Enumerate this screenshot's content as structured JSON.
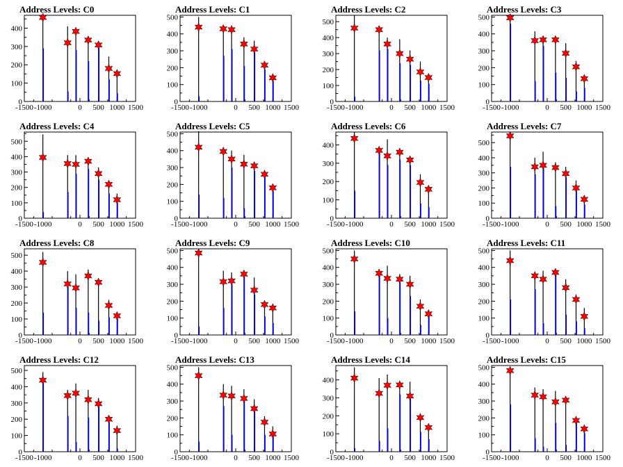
{
  "figure": {
    "layout": {
      "rows": 4,
      "cols": 4
    },
    "colors": {
      "spike_black": "#000000",
      "spike_blue": "#0000ff",
      "star_fill": "#ff0000",
      "star_stroke": "#000000",
      "frame": "#000000"
    }
  },
  "chart_data": [
    {
      "type": "bar",
      "title": "Address Levels: C0",
      "xlim": [
        -1500,
        1500
      ],
      "ylim": [
        0,
        470
      ],
      "xticks": [
        -1500,
        -1000,
        0,
        500,
        1000,
        1500
      ],
      "xtick_labels": [
        "-1500",
        "-1000",
        "0",
        "500",
        "1000",
        "1500"
      ],
      "yticks": [
        0,
        100,
        200,
        300,
        400
      ],
      "spikes": {
        "x": [
          -1000,
          -333,
          -111,
          222,
          500,
          778,
          1000
        ],
        "black": [
          460,
          410,
          390,
          345,
          320,
          245,
          165
        ],
        "blue": [
          290,
          55,
          280,
          220,
          300,
          120,
          45
        ]
      },
      "markers": {
        "x": [
          -1000,
          -333,
          -111,
          222,
          500,
          778,
          1000
        ],
        "y": [
          458,
          320,
          382,
          335,
          308,
          180,
          152
        ]
      }
    },
    {
      "type": "bar",
      "title": "Address Levels: C1",
      "xlim": [
        -1500,
        1500
      ],
      "ylim": [
        0,
        510
      ],
      "xticks": [
        -1500,
        -1000,
        0,
        500,
        1000,
        1500
      ],
      "xtick_labels": [
        "-1500",
        "-1000",
        "0",
        "500",
        "1000",
        "1500"
      ],
      "yticks": [
        0,
        100,
        200,
        300,
        400,
        500
      ],
      "spikes": {
        "x": [
          -1000,
          -333,
          -111,
          222,
          500,
          778,
          1000
        ],
        "black": [
          500,
          440,
          430,
          380,
          360,
          230,
          155
        ],
        "blue": [
          30,
          270,
          310,
          210,
          290,
          190,
          120
        ]
      },
      "markers": {
        "x": [
          -1000,
          -333,
          -111,
          222,
          500,
          778,
          1000
        ],
        "y": [
          440,
          430,
          425,
          340,
          310,
          215,
          140
        ]
      }
    },
    {
      "type": "bar",
      "title": "Address Levels: C2",
      "xlim": [
        -1500,
        1500
      ],
      "ylim": [
        0,
        540
      ],
      "xticks": [
        -1500,
        -1000,
        0,
        500,
        1000,
        1500
      ],
      "xtick_labels": [
        "-1500",
        "-1000",
        "0",
        "500",
        "1000",
        "1500"
      ],
      "yticks": [
        0,
        100,
        200,
        300,
        400,
        500
      ],
      "spikes": {
        "x": [
          -1000,
          -333,
          -111,
          222,
          500,
          778,
          1000
        ],
        "black": [
          540,
          470,
          400,
          390,
          320,
          250,
          155
        ],
        "blue": [
          30,
          320,
          330,
          240,
          230,
          130,
          110
        ]
      },
      "markers": {
        "x": [
          -1000,
          -333,
          -111,
          222,
          500,
          778,
          1000
        ],
        "y": [
          460,
          450,
          360,
          300,
          265,
          185,
          150
        ]
      }
    },
    {
      "type": "bar",
      "title": "Address Levels: C3",
      "xlim": [
        -1500,
        1500
      ],
      "ylim": [
        0,
        510
      ],
      "xticks": [
        -1500,
        -1000,
        0,
        500,
        1000,
        1500
      ],
      "xtick_labels": [
        "-1500",
        "-1000",
        "0",
        "500",
        "1000",
        "1500"
      ],
      "yticks": [
        0,
        100,
        200,
        300,
        400,
        500
      ],
      "spikes": {
        "x": [
          -1000,
          -333,
          -111,
          222,
          500,
          778,
          1000
        ],
        "black": [
          500,
          415,
          380,
          370,
          345,
          240,
          150
        ],
        "blue": [
          460,
          120,
          330,
          170,
          140,
          60,
          80
        ]
      },
      "markers": {
        "x": [
          -1000,
          -333,
          -111,
          222,
          500,
          778,
          1000
        ],
        "y": [
          495,
          360,
          365,
          365,
          285,
          205,
          135
        ]
      }
    },
    {
      "type": "bar",
      "title": "Address Levels: C4",
      "xlim": [
        -1500,
        1500
      ],
      "ylim": [
        0,
        560
      ],
      "xticks": [
        -1500,
        -1000,
        0,
        500,
        1000,
        1500
      ],
      "xtick_labels": [
        "-1500",
        "-1000",
        "0",
        "500",
        "1000",
        "1500"
      ],
      "yticks": [
        0,
        100,
        200,
        300,
        400,
        500
      ],
      "spikes": {
        "x": [
          -1000,
          -333,
          -111,
          222,
          500,
          778,
          1000
        ],
        "black": [
          545,
          410,
          410,
          380,
          330,
          230,
          160
        ],
        "blue": [
          40,
          170,
          290,
          320,
          250,
          160,
          100
        ]
      },
      "markers": {
        "x": [
          -1000,
          -333,
          -111,
          222,
          500,
          778,
          1000
        ],
        "y": [
          395,
          355,
          350,
          370,
          290,
          220,
          120
        ]
      }
    },
    {
      "type": "bar",
      "title": "Address Levels: C5",
      "xlim": [
        -1500,
        1500
      ],
      "ylim": [
        0,
        510
      ],
      "xticks": [
        -1500,
        -1000,
        0,
        500,
        1000,
        1500
      ],
      "xtick_labels": [
        "-1500",
        "-1000",
        "0",
        "500",
        "1000",
        "1500"
      ],
      "yticks": [
        0,
        100,
        200,
        300,
        400,
        500
      ],
      "spikes": {
        "x": [
          -1000,
          -333,
          -111,
          222,
          500,
          778,
          1000
        ],
        "black": [
          515,
          420,
          400,
          375,
          330,
          270,
          190
        ],
        "blue": [
          140,
          120,
          300,
          60,
          280,
          250,
          160
        ]
      },
      "markers": {
        "x": [
          -1000,
          -333,
          -111,
          222,
          500,
          778,
          1000
        ],
        "y": [
          420,
          395,
          350,
          320,
          310,
          260,
          180
        ]
      }
    },
    {
      "type": "bar",
      "title": "Address Levels: C6",
      "xlim": [
        -1500,
        1500
      ],
      "ylim": [
        0,
        470
      ],
      "xticks": [
        -1500,
        -1000,
        0,
        500,
        1000,
        1500
      ],
      "xtick_labels": [
        "-1500",
        "-1000",
        "0",
        "500",
        "1000",
        "1500"
      ],
      "yticks": [
        0,
        100,
        200,
        300,
        400
      ],
      "spikes": {
        "x": [
          -1000,
          -333,
          -111,
          222,
          500,
          778,
          1000
        ],
        "black": [
          470,
          390,
          430,
          380,
          330,
          240,
          170
        ],
        "blue": [
          150,
          360,
          290,
          320,
          290,
          80,
          60
        ]
      },
      "markers": {
        "x": [
          -1000,
          -333,
          -111,
          222,
          500,
          778,
          1000
        ],
        "y": [
          435,
          370,
          340,
          360,
          318,
          195,
          158
        ]
      }
    },
    {
      "type": "bar",
      "title": "Address Levels: C7",
      "xlim": [
        -1500,
        1500
      ],
      "ylim": [
        0,
        570
      ],
      "xticks": [
        -1500,
        -1000,
        0,
        500,
        1000,
        1500
      ],
      "xtick_labels": [
        "-1500",
        "-1000",
        "0",
        "500",
        "1000",
        "1500"
      ],
      "yticks": [
        0,
        100,
        200,
        300,
        400,
        500
      ],
      "spikes": {
        "x": [
          -1000,
          -333,
          -111,
          222,
          500,
          778,
          1000
        ],
        "black": [
          560,
          400,
          440,
          370,
          340,
          250,
          150
        ],
        "blue": [
          340,
          290,
          330,
          80,
          270,
          180,
          90
        ]
      },
      "markers": {
        "x": [
          -1000,
          -333,
          -111,
          222,
          500,
          778,
          1000
        ],
        "y": [
          545,
          340,
          350,
          335,
          295,
          200,
          125
        ]
      }
    },
    {
      "type": "bar",
      "title": "Address Levels: C8",
      "xlim": [
        -1500,
        1500
      ],
      "ylim": [
        0,
        540
      ],
      "xticks": [
        -1500,
        -1000,
        0,
        500,
        1000,
        1500
      ],
      "xtick_labels": [
        "-1500",
        "-1000",
        "0",
        "500",
        "1000",
        "1500"
      ],
      "yticks": [
        0,
        100,
        200,
        300,
        400,
        500
      ],
      "spikes": {
        "x": [
          -1000,
          -333,
          -111,
          222,
          500,
          778,
          1000
        ],
        "black": [
          520,
          400,
          380,
          410,
          330,
          220,
          140
        ],
        "blue": [
          140,
          300,
          170,
          140,
          90,
          110,
          110
        ]
      },
      "markers": {
        "x": [
          -1000,
          -333,
          -111,
          222,
          500,
          778,
          1000
        ],
        "y": [
          455,
          320,
          295,
          370,
          330,
          185,
          120
        ]
      }
    },
    {
      "type": "bar",
      "title": "Address Levels: C9",
      "xlim": [
        -1500,
        1500
      ],
      "ylim": [
        0,
        510
      ],
      "xticks": [
        -1500,
        -1000,
        0,
        500,
        1000,
        1500
      ],
      "xtick_labels": [
        "-1500",
        "-1000",
        "0",
        "500",
        "1000",
        "1500"
      ],
      "yticks": [
        0,
        100,
        200,
        300,
        400,
        500
      ],
      "spikes": {
        "x": [
          -1000,
          -333,
          -111,
          222,
          500,
          778,
          1000
        ],
        "black": [
          500,
          380,
          370,
          380,
          340,
          200,
          170
        ],
        "blue": [
          50,
          160,
          300,
          345,
          240,
          110,
          70
        ]
      },
      "markers": {
        "x": [
          -1000,
          -333,
          -111,
          222,
          500,
          778,
          1000
        ],
        "y": [
          485,
          315,
          320,
          360,
          265,
          180,
          160
        ]
      }
    },
    {
      "type": "bar",
      "title": "Address Levels: C10",
      "xlim": [
        -1500,
        1500
      ],
      "ylim": [
        0,
        510
      ],
      "xticks": [
        -1500,
        -1000,
        0,
        500,
        1000,
        1500
      ],
      "xtick_labels": [
        "-1500",
        "-1000",
        "0",
        "500",
        "1000",
        "1500"
      ],
      "yticks": [
        0,
        100,
        200,
        300,
        400,
        500
      ],
      "spikes": {
        "x": [
          -1000,
          -333,
          -111,
          222,
          500,
          778,
          1000
        ],
        "black": [
          500,
          390,
          410,
          360,
          350,
          210,
          140
        ],
        "blue": [
          140,
          360,
          100,
          310,
          230,
          60,
          120
        ]
      },
      "markers": {
        "x": [
          -1000,
          -333,
          -111,
          222,
          500,
          778,
          1000
        ],
        "y": [
          450,
          365,
          335,
          330,
          300,
          170,
          125
        ]
      }
    },
    {
      "type": "bar",
      "title": "Address Levels: C11",
      "xlim": [
        -1500,
        1500
      ],
      "ylim": [
        0,
        510
      ],
      "xticks": [
        -1500,
        -1000,
        0,
        500,
        1000,
        1500
      ],
      "xtick_labels": [
        "-1500",
        "-1000",
        "0",
        "500",
        "1000",
        "1500"
      ],
      "yticks": [
        0,
        100,
        200,
        300,
        400,
        500
      ],
      "spikes": {
        "x": [
          -1000,
          -333,
          -111,
          222,
          500,
          778,
          1000
        ],
        "black": [
          500,
          370,
          380,
          370,
          330,
          240,
          160
        ],
        "blue": [
          210,
          270,
          70,
          360,
          120,
          80,
          40
        ]
      },
      "markers": {
        "x": [
          -1000,
          -333,
          -111,
          222,
          500,
          778,
          1000
        ],
        "y": [
          440,
          350,
          330,
          370,
          280,
          210,
          110
        ]
      }
    },
    {
      "type": "bar",
      "title": "Address Levels: C12",
      "xlim": [
        -1500,
        1500
      ],
      "ylim": [
        0,
        530
      ],
      "xticks": [
        -1500,
        -1000,
        0,
        500,
        1000,
        1500
      ],
      "xtick_labels": [
        "-1500",
        "-1000",
        "0",
        "500",
        "1000",
        "1500"
      ],
      "yticks": [
        0,
        100,
        200,
        300,
        400,
        500
      ],
      "spikes": {
        "x": [
          -1000,
          -333,
          -111,
          222,
          500,
          778,
          1000
        ],
        "black": [
          490,
          380,
          420,
          380,
          330,
          220,
          160
        ],
        "blue": [
          440,
          220,
          60,
          210,
          290,
          180,
          20
        ]
      },
      "markers": {
        "x": [
          -1000,
          -333,
          -111,
          222,
          500,
          778,
          1000
        ],
        "y": [
          440,
          345,
          360,
          320,
          295,
          200,
          130
        ]
      }
    },
    {
      "type": "bar",
      "title": "Address Levels: C13",
      "xlim": [
        -1500,
        1500
      ],
      "ylim": [
        0,
        510
      ],
      "xticks": [
        -1500,
        -1000,
        0,
        500,
        1000,
        1500
      ],
      "xtick_labels": [
        "-1500",
        "-1000",
        "0",
        "500",
        "1000",
        "1500"
      ],
      "yticks": [
        0,
        100,
        200,
        300,
        400,
        500
      ],
      "spikes": {
        "x": [
          -1000,
          -333,
          -111,
          222,
          500,
          778,
          1000
        ],
        "black": [
          500,
          400,
          390,
          370,
          310,
          210,
          150
        ],
        "blue": [
          60,
          270,
          100,
          330,
          240,
          100,
          110
        ]
      },
      "markers": {
        "x": [
          -1000,
          -333,
          -111,
          222,
          500,
          778,
          1000
        ],
        "y": [
          450,
          335,
          330,
          315,
          255,
          175,
          105
        ]
      }
    },
    {
      "type": "bar",
      "title": "Address Levels: C14",
      "xlim": [
        -1500,
        1500
      ],
      "ylim": [
        0,
        480
      ],
      "xticks": [
        -1500,
        -1000,
        0,
        500,
        1000,
        1500
      ],
      "xtick_labels": [
        "-1500",
        "-1000",
        "0",
        "500",
        "1000",
        "1500"
      ],
      "yticks": [
        0,
        100,
        200,
        300,
        400
      ],
      "spikes": {
        "x": [
          -1000,
          -333,
          -111,
          222,
          500,
          778,
          1000
        ],
        "black": [
          470,
          410,
          430,
          380,
          390,
          210,
          145
        ],
        "blue": [
          20,
          60,
          130,
          320,
          300,
          110,
          70
        ]
      },
      "markers": {
        "x": [
          -1000,
          -333,
          -111,
          222,
          500,
          778,
          1000
        ],
        "y": [
          410,
          325,
          370,
          372,
          310,
          190,
          135
        ]
      }
    },
    {
      "type": "bar",
      "title": "Address Levels: C15",
      "xlim": [
        -1500,
        1500
      ],
      "ylim": [
        0,
        510
      ],
      "xticks": [
        -1500,
        -1000,
        0,
        500,
        1000,
        1500
      ],
      "xtick_labels": [
        "-1500",
        "-1000",
        "0",
        "500",
        "1000",
        "1500"
      ],
      "yticks": [
        0,
        100,
        200,
        300,
        400,
        500
      ],
      "spikes": {
        "x": [
          -1000,
          -333,
          -111,
          222,
          500,
          778,
          1000
        ],
        "black": [
          500,
          380,
          370,
          360,
          320,
          190,
          150
        ],
        "blue": [
          280,
          80,
          30,
          170,
          40,
          190,
          110
        ]
      },
      "markers": {
        "x": [
          -1000,
          -333,
          -111,
          222,
          500,
          778,
          1000
        ],
        "y": [
          480,
          335,
          325,
          295,
          305,
          185,
          135
        ]
      }
    }
  ]
}
